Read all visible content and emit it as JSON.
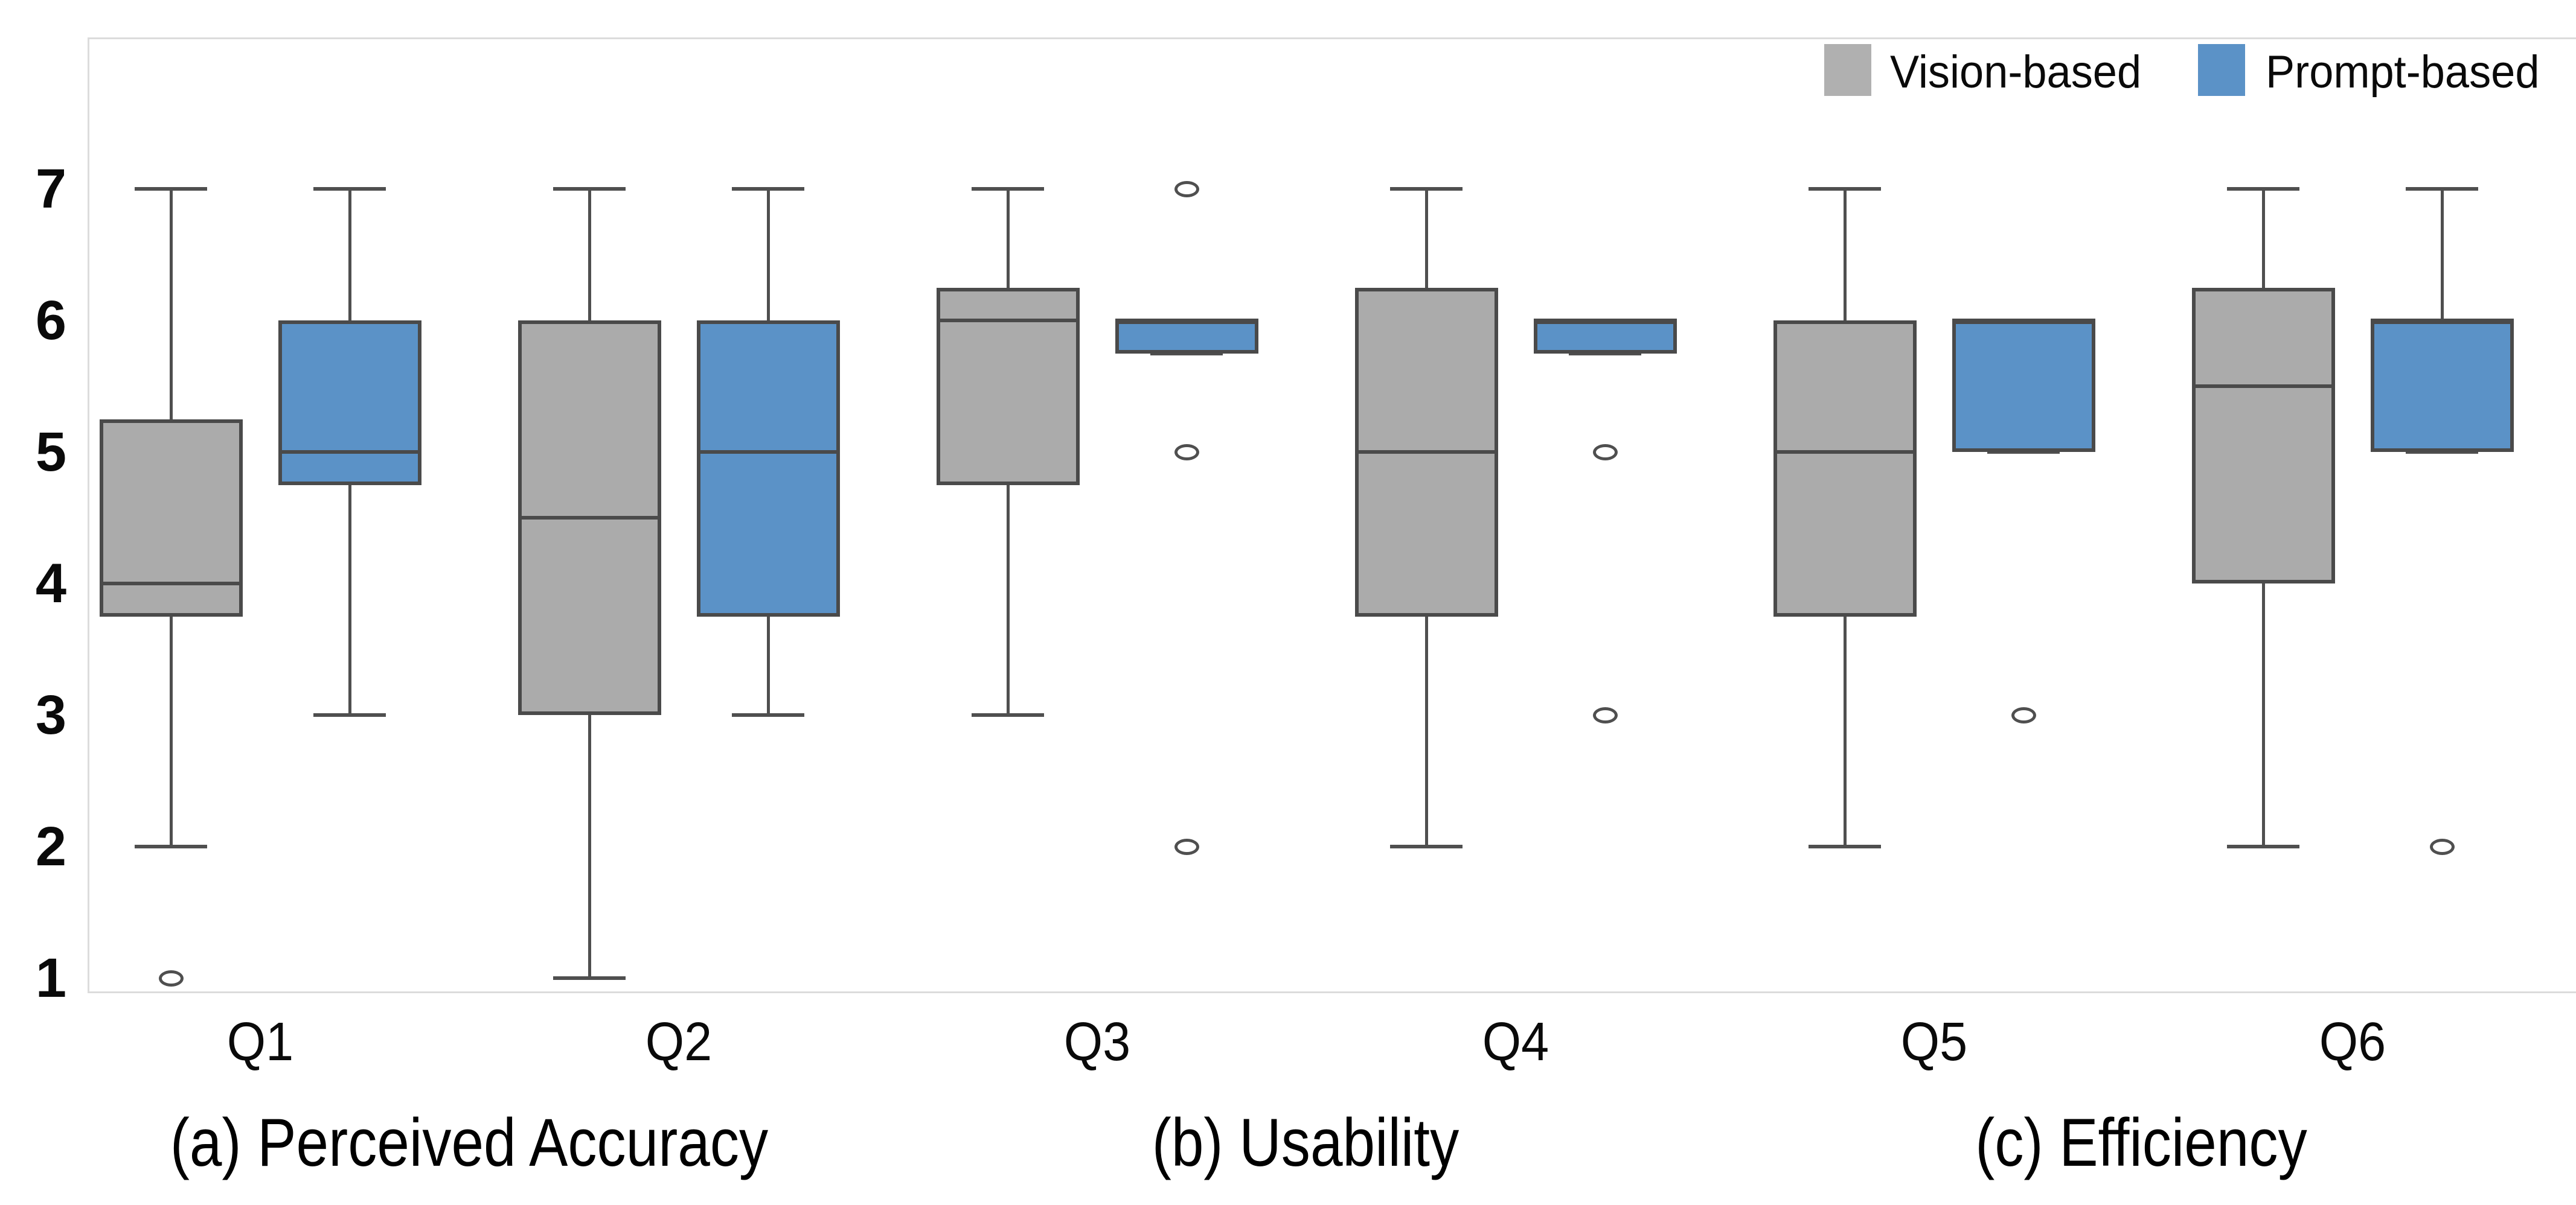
{
  "figure": {
    "background": "#ffffff",
    "legend": {
      "items": [
        {
          "label": "Vision-based",
          "color": "#b0b0b0"
        },
        {
          "label": "Prompt-based",
          "color": "#5b92c7"
        }
      ]
    },
    "captions": [
      {
        "label": "(a) Perceived Accuracy"
      },
      {
        "label": "(b) Usability"
      },
      {
        "label": "(c) Efficiency"
      }
    ]
  },
  "chart_data": {
    "type": "boxplot",
    "orientation": "vertical",
    "title": "",
    "xlabel": "",
    "ylabel": "",
    "grid": false,
    "legend_position": "top-right",
    "y_axis": {
      "ticks": [
        7,
        6,
        5,
        4,
        3,
        2,
        1
      ],
      "min": 1,
      "max": 7
    },
    "categories": [
      "Q1",
      "Q2",
      "Q3",
      "Q4",
      "Q5",
      "Q6"
    ],
    "category_groups": [
      {
        "caption": "(a) Perceived Accuracy",
        "categories": [
          "Q1",
          "Q2"
        ]
      },
      {
        "caption": "(b) Usability",
        "categories": [
          "Q3",
          "Q4"
        ]
      },
      {
        "caption": "(c) Efficiency",
        "categories": [
          "Q5",
          "Q6"
        ]
      }
    ],
    "series": [
      {
        "name": "Vision-based",
        "fill_color": "#ababab",
        "edge_color": "#4a4a4a",
        "boxes": [
          {
            "category": "Q1",
            "whislo": 2,
            "q1": 3.75,
            "med": 4.0,
            "q3": 5.25,
            "whishi": 7,
            "outliers": [
              1
            ]
          },
          {
            "category": "Q2",
            "whislo": 1,
            "q1": 3.0,
            "med": 4.5,
            "q3": 6.0,
            "whishi": 7,
            "outliers": []
          },
          {
            "category": "Q3",
            "whislo": 3,
            "q1": 4.75,
            "med": 6.0,
            "q3": 6.25,
            "whishi": 7,
            "outliers": []
          },
          {
            "category": "Q4",
            "whislo": 2,
            "q1": 3.75,
            "med": 5.0,
            "q3": 6.25,
            "whishi": 7,
            "outliers": []
          },
          {
            "category": "Q5",
            "whislo": 2,
            "q1": 3.75,
            "med": 5.0,
            "q3": 6.0,
            "whishi": 7,
            "outliers": []
          },
          {
            "category": "Q6",
            "whislo": 2,
            "q1": 4.0,
            "med": 5.5,
            "q3": 6.25,
            "whishi": 7,
            "outliers": []
          }
        ]
      },
      {
        "name": "Prompt-based",
        "fill_color": "#5b92c7",
        "edge_color": "#4a4a4a",
        "boxes": [
          {
            "category": "Q1",
            "whislo": 3,
            "q1": 4.75,
            "med": 5.0,
            "q3": 6.0,
            "whishi": 7,
            "outliers": []
          },
          {
            "category": "Q2",
            "whislo": 3,
            "q1": 3.75,
            "med": 5.0,
            "q3": 6.0,
            "whishi": 7,
            "outliers": []
          },
          {
            "category": "Q3",
            "whislo": 5.75,
            "q1": 5.75,
            "med": 6.0,
            "q3": 6.0,
            "whishi": 6,
            "outliers": [
              7,
              5,
              2
            ]
          },
          {
            "category": "Q4",
            "whislo": 5.75,
            "q1": 5.75,
            "med": 6.0,
            "q3": 6.0,
            "whishi": 6,
            "outliers": [
              5,
              3
            ]
          },
          {
            "category": "Q5",
            "whislo": 5.0,
            "q1": 5.0,
            "med": 6.0,
            "q3": 6.0,
            "whishi": 6,
            "outliers": [
              3
            ]
          },
          {
            "category": "Q6",
            "whislo": 5.0,
            "q1": 5.0,
            "med": 6.0,
            "q3": 6.0,
            "whishi": 7,
            "outliers": [
              2
            ]
          }
        ]
      }
    ]
  }
}
